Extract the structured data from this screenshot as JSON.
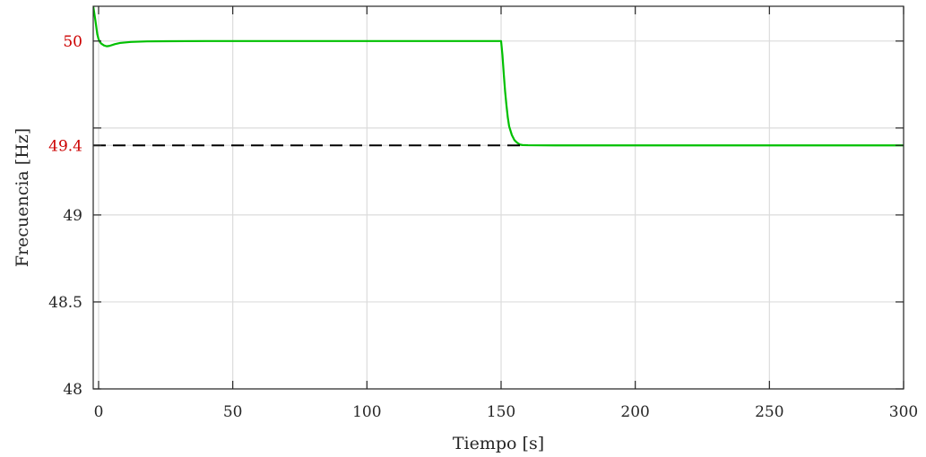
{
  "chart_data": {
    "type": "line",
    "xlabel": "Tiempo [s]",
    "ylabel": "Frecuencia [Hz]",
    "xlim": [
      -2,
      300
    ],
    "ylim": [
      48,
      50.2
    ],
    "x_ticks": [
      0,
      50,
      100,
      150,
      200,
      250,
      300
    ],
    "x_tick_labels": [
      "0",
      "50",
      "100",
      "150",
      "200",
      "250",
      "300"
    ],
    "y_ticks": [
      48,
      48.5,
      49,
      49.4,
      49.5,
      50
    ],
    "y_tick_labels": [
      {
        "value": 48,
        "text": "48",
        "color": "#262626"
      },
      {
        "value": 48.5,
        "text": "48.5",
        "color": "#262626"
      },
      {
        "value": 49,
        "text": "49",
        "color": "#262626"
      },
      {
        "value": 49.4,
        "text": "49.4",
        "color": "#cc0000"
      },
      {
        "value": 50,
        "text": "50",
        "color": "#cc0000"
      }
    ],
    "grid": true,
    "series": [
      {
        "color": "#00c000",
        "style": "solid",
        "x": [
          -2,
          -1.2,
          -0.5,
          0,
          0.5,
          1,
          2,
          3,
          4,
          6,
          8,
          12,
          18,
          25,
          40,
          80,
          120,
          150,
          150.5,
          151,
          151.5,
          152,
          152.5,
          153,
          154,
          155,
          156,
          157,
          158,
          160,
          170,
          200,
          250,
          300
        ],
        "y": [
          50.2,
          50.12,
          50.04,
          50.01,
          49.995,
          49.985,
          49.975,
          49.97,
          49.972,
          49.982,
          49.989,
          49.995,
          49.998,
          49.999,
          50,
          50,
          50,
          50,
          49.92,
          49.81,
          49.71,
          49.63,
          49.56,
          49.51,
          49.46,
          49.43,
          49.415,
          49.405,
          49.402,
          49.401,
          49.4,
          49.4,
          49.4,
          49.4
        ]
      },
      {
        "color": "#000000",
        "style": "dashed",
        "x": [
          -2,
          158
        ],
        "y": [
          49.4,
          49.4
        ]
      }
    ]
  }
}
